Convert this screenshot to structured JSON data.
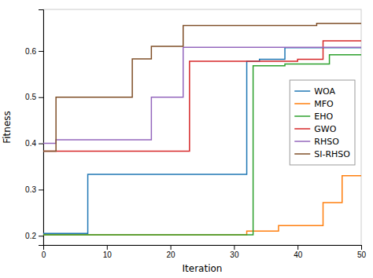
{
  "chart_data": {
    "type": "line",
    "xlabel": "Iteration",
    "ylabel": "Fitness",
    "xlim": [
      0,
      50
    ],
    "ylim": [
      0.18,
      0.69
    ],
    "xticks": [
      0,
      10,
      20,
      30,
      40,
      50
    ],
    "yticks": [
      0.2,
      0.3,
      0.4,
      0.5,
      0.6
    ],
    "legend": "lower right",
    "series": [
      {
        "name": "WOA",
        "color": "#1f77b4",
        "x": [
          0,
          7,
          7,
          32,
          32,
          34,
          34,
          38,
          38,
          50
        ],
        "values": [
          0.205,
          0.205,
          0.333,
          0.333,
          0.578,
          0.578,
          0.582,
          0.582,
          0.607,
          0.607
        ]
      },
      {
        "name": "MFO",
        "color": "#ff7f0e",
        "x": [
          0,
          32,
          32,
          37,
          37,
          44,
          44,
          47,
          47,
          50
        ],
        "values": [
          0.202,
          0.202,
          0.21,
          0.21,
          0.222,
          0.222,
          0.272,
          0.272,
          0.33,
          0.33
        ]
      },
      {
        "name": "EHO",
        "color": "#2ca02c",
        "x": [
          0,
          33,
          33,
          38,
          38,
          45,
          45,
          50
        ],
        "values": [
          0.202,
          0.202,
          0.568,
          0.568,
          0.572,
          0.572,
          0.592,
          0.592
        ]
      },
      {
        "name": "GWO",
        "color": "#d62728",
        "x": [
          0,
          23,
          23,
          40,
          40,
          44,
          44,
          50
        ],
        "values": [
          0.383,
          0.383,
          0.578,
          0.578,
          0.582,
          0.582,
          0.622,
          0.622
        ]
      },
      {
        "name": "RHSO",
        "color": "#9467bd",
        "x": [
          0,
          2,
          2,
          17,
          17,
          22,
          22,
          50
        ],
        "values": [
          0.4,
          0.4,
          0.408,
          0.408,
          0.5,
          0.5,
          0.608,
          0.608
        ]
      },
      {
        "name": "SI-RHSO",
        "color": "#7f4f28",
        "x": [
          0,
          2,
          2,
          14,
          14,
          17,
          17,
          22,
          22,
          43,
          43,
          50
        ],
        "values": [
          0.383,
          0.383,
          0.5,
          0.5,
          0.583,
          0.583,
          0.61,
          0.61,
          0.655,
          0.655,
          0.66,
          0.66
        ]
      }
    ]
  }
}
